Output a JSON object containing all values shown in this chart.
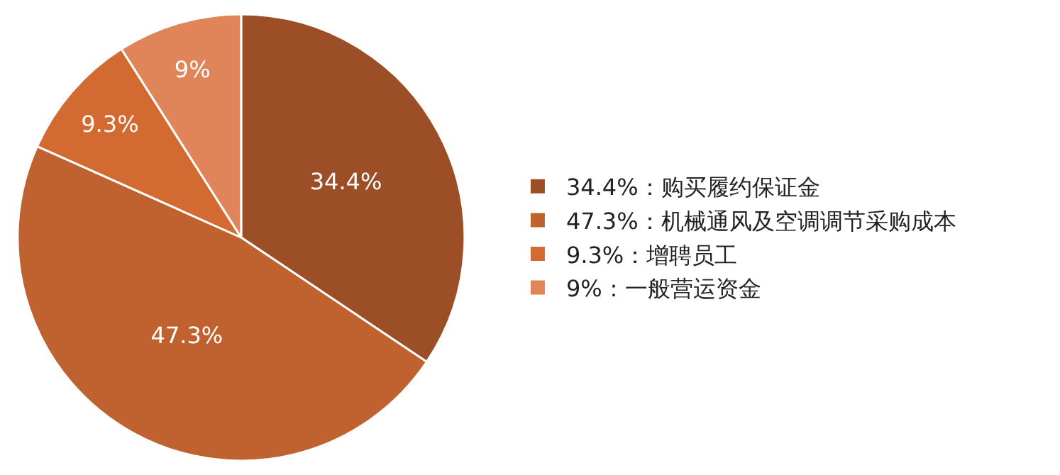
{
  "chart_data": {
    "type": "pie",
    "categories": [
      "34.4%：购买履约保证金",
      "47.3%：机械通风及空调调节采购成本",
      "9.3%：增聘员工",
      "9%：一般营运资金"
    ],
    "values": [
      34.4,
      47.3,
      9.3,
      9
    ],
    "value_labels": [
      "34.4%",
      "47.3%",
      "9.3%",
      "9%"
    ],
    "colors": [
      "#9c4f27",
      "#c0622f",
      "#d36a32",
      "#e0845a"
    ],
    "legend": "right"
  }
}
